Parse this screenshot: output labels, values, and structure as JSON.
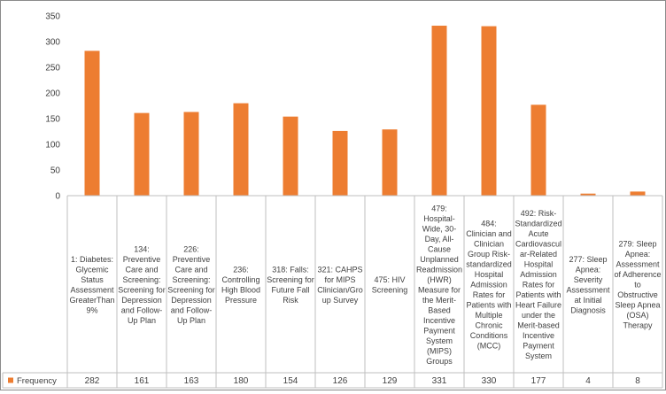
{
  "chart_data": {
    "type": "bar",
    "title": "",
    "xlabel": "",
    "ylabel": "",
    "ylim": [
      0,
      350
    ],
    "yticks": [
      0,
      50,
      100,
      150,
      200,
      250,
      300,
      350
    ],
    "grid": false,
    "legend_placement": "bottom-left (data table row)",
    "bar_color": "#ED7D31",
    "categories": [
      "1: Diabetes: Glycemic Status Assessment GreaterThan 9%",
      "134: Preventive Care and Screening: Screening for Depression and Follow-Up Plan",
      "226: Preventive Care and Screening: Screening for Depression and Follow-Up Plan",
      "236: Controlling High Blood Pressure",
      "318: Falls: Screening for Future Fall Risk",
      "321: CAHPS for MIPS Clinician/Group Survey",
      "475: HIV Screening",
      "479: Hospital-Wide, 30-Day, All-Cause Unplanned Readmission (HWR) Measure for the Merit-Based Incentive Payment System (MIPS) Groups",
      "484: Clinician and Clinician Group Risk-standardized Hospital Admission Rates for Patients with Multiple Chronic Conditions (MCC)",
      "492: Risk-Standardized Acute Cardiovascular-Related Hospital Admission Rates for Patients with Heart Failure under the Merit-based Incentive Payment System",
      "277: Sleep Apnea: Severity Assessment at Initial Diagnosis",
      "279: Sleep Apnea: Assessment of Adherence to Obstructive Sleep Apnea (OSA) Therapy"
    ],
    "category_lines": [
      [
        "1: Diabetes:",
        "Glycemic",
        "Status",
        "Assessment",
        "GreaterThan",
        "9%"
      ],
      [
        "134:",
        "Preventive",
        "Care and",
        "Screening:",
        "Screening for",
        "Depression",
        "and Follow-",
        "Up Plan"
      ],
      [
        "226:",
        "Preventive",
        "Care and",
        "Screening:",
        "Screening for",
        "Depression",
        "and Follow-",
        "Up Plan"
      ],
      [
        "236:",
        "Controlling",
        "High Blood",
        "Pressure"
      ],
      [
        "318: Falls:",
        "Screening for",
        "Future Fall",
        "Risk"
      ],
      [
        "321: CAHPS",
        "for MIPS",
        "Clinician/Gro",
        "up Survey"
      ],
      [
        "475: HIV",
        "Screening"
      ],
      [
        "479:",
        "Hospital-",
        "Wide, 30-",
        "Day, All-",
        "Cause",
        "Unplanned",
        "Readmission",
        "(HWR)",
        "Measure for",
        "the Merit-",
        "Based",
        "Incentive",
        "Payment",
        "System",
        "(MIPS)",
        "Groups"
      ],
      [
        "484:",
        "Clinician and",
        "Clinician",
        "Group Risk-",
        "standardized",
        "Hospital",
        "Admission",
        "Rates for",
        "Patients with",
        "Multiple",
        "Chronic",
        "Conditions",
        "(MCC)"
      ],
      [
        "492: Risk-",
        "Standardized",
        "Acute",
        "Cardiovascul",
        "ar-Related",
        "Hospital",
        "Admission",
        "Rates for",
        "Patients with",
        "Heart Failure",
        "under the",
        "Merit-based",
        "Incentive",
        "Payment",
        "System"
      ],
      [
        "277: Sleep",
        "Apnea:",
        "Severity",
        "Assessment",
        "at Initial",
        "Diagnosis"
      ],
      [
        "279: Sleep",
        "Apnea:",
        "Assessment",
        "of Adherence",
        "to",
        "Obstructive",
        "Sleep Apnea",
        "(OSA)",
        "Therapy"
      ]
    ],
    "series": [
      {
        "name": "Frequency",
        "values": [
          282,
          161,
          163,
          180,
          154,
          126,
          129,
          331,
          330,
          177,
          4,
          8
        ]
      }
    ]
  }
}
